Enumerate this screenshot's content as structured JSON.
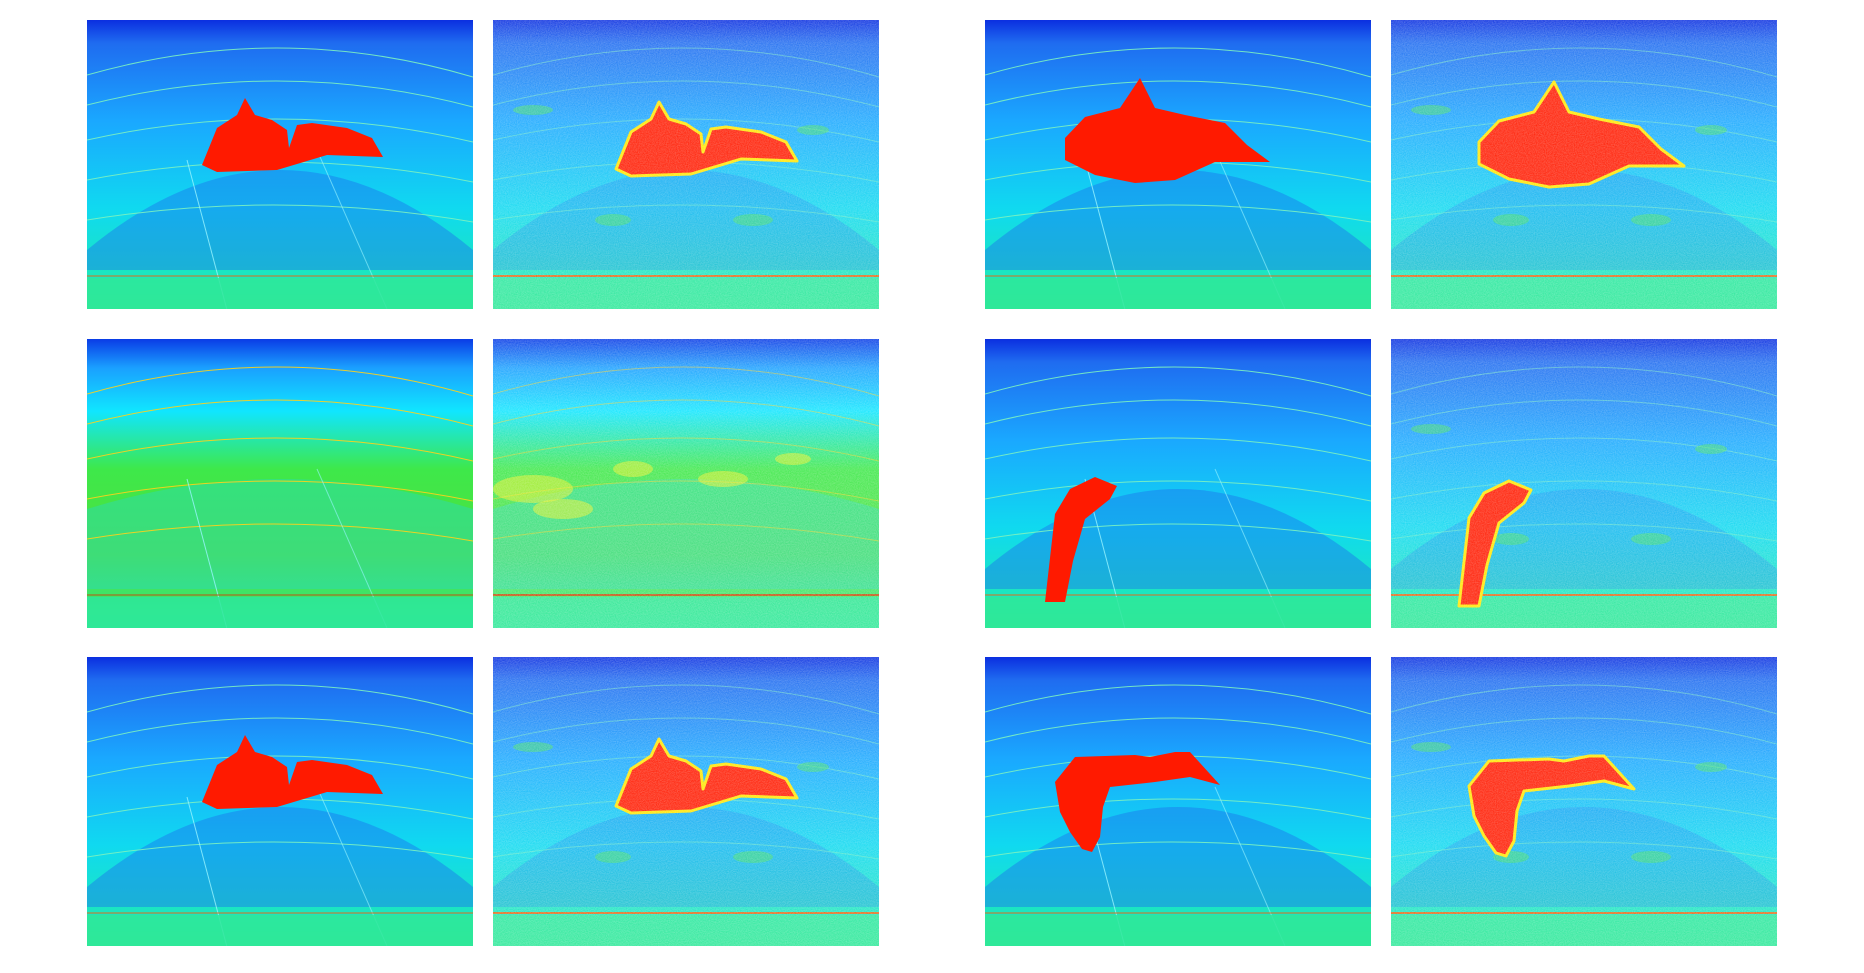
{
  "figure": {
    "layout": {
      "rows": 3,
      "pairs_per_row": 2,
      "panels_per_pair": 2
    },
    "colormap": "jet",
    "colors": {
      "background": "#ffffff",
      "jet_top": "#0b2fe0",
      "jet_mid": "#00d6ff",
      "jet_green": "#2fe35a",
      "anomaly": "#ff1a00",
      "reflector": "#7cf2c0",
      "water_bottom": "#ff5a00"
    },
    "pairs": [
      {
        "name": "pair-1",
        "row": 0,
        "col": 0,
        "anomaly": "anticline-top",
        "background": "blue"
      },
      {
        "name": "pair-2",
        "row": 0,
        "col": 1,
        "anomaly": "anticline-peak",
        "background": "blue"
      },
      {
        "name": "pair-3",
        "row": 1,
        "col": 0,
        "anomaly": "none",
        "background": "green"
      },
      {
        "name": "pair-4",
        "row": 1,
        "col": 1,
        "anomaly": "vertical-lens",
        "background": "blue"
      },
      {
        "name": "pair-5",
        "row": 2,
        "col": 0,
        "anomaly": "anticline-top",
        "background": "blue"
      },
      {
        "name": "pair-6",
        "row": 2,
        "col": 1,
        "anomaly": "hook",
        "background": "blue"
      }
    ]
  }
}
